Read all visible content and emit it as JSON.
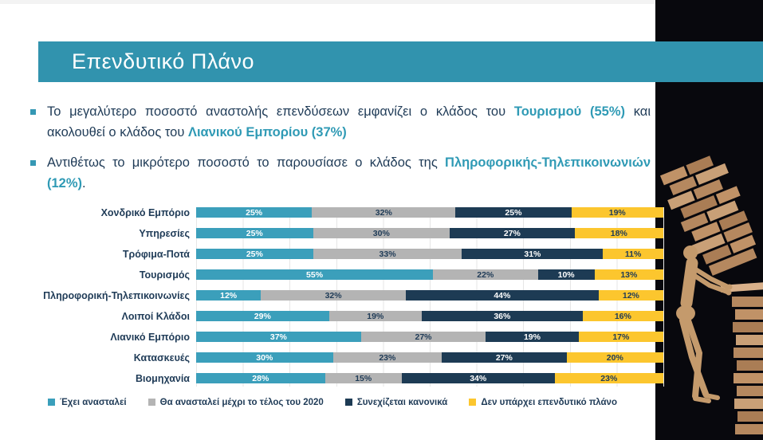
{
  "title": "Επενδυτικό Πλάνο",
  "bullets": [
    {
      "runs": [
        {
          "t": "Το μεγαλύτερο ποσοστό αναστολής επενδύσεων εμφανίζει ο κλάδος του ",
          "accent": false
        },
        {
          "t": "Τουρισμού (55%)",
          "accent": true
        },
        {
          "t": " και ακολουθεί ο κλάδος του ",
          "accent": false
        },
        {
          "t": "Λιανικού Εμπορίου (37%)",
          "accent": true
        }
      ]
    },
    {
      "runs": [
        {
          "t": "Αντιθέτως το μικρότερο ποσοστό το παρουσίασε ο κλάδος της ",
          "accent": false
        },
        {
          "t": "Πληροφορικής-Τηλεπικοινωνιών (12%)",
          "accent": true
        },
        {
          "t": ".",
          "accent": false
        }
      ]
    }
  ],
  "chart_data": {
    "type": "bar",
    "orientation": "horizontal",
    "stacked": true,
    "unit": "%",
    "xlim": [
      0,
      100
    ],
    "grid": true,
    "legend_position": "bottom",
    "categories": [
      "Χονδρικό Εμπόριο",
      "Υπηρεσίες",
      "Τρόφιμα-Ποτά",
      "Τουρισμός",
      "Πληροφορική-Τηλεπικοινωνίες",
      "Λοιποί Κλάδοι",
      "Λιανικό Εμπόριο",
      "Κατασκευές",
      "Βιομηχανία"
    ],
    "series": [
      {
        "name": "Έχει ανασταλεί",
        "color": "#3b9fbb",
        "label_color": "#ffffff",
        "values": [
          25,
          25,
          25,
          55,
          12,
          29,
          37,
          30,
          28
        ]
      },
      {
        "name": "Θα ανασταλεί μέχρι το τέλος του 2020",
        "color": "#b4b4b4",
        "label_color": "#1f3b57",
        "values": [
          32,
          30,
          33,
          22,
          32,
          19,
          27,
          23,
          15
        ]
      },
      {
        "name": "Συνεχίζεται κανονικά",
        "color": "#1d3b54",
        "label_color": "#ffffff",
        "values": [
          25,
          27,
          31,
          10,
          44,
          36,
          19,
          27,
          34
        ]
      },
      {
        "name": "Δεν υπάρχει επενδυτικό πλάνο",
        "color": "#fcc62e",
        "label_color": "#1f3b57",
        "values": [
          19,
          18,
          11,
          13,
          12,
          16,
          17,
          20,
          23
        ]
      }
    ]
  },
  "colors": {
    "banner": "#3193ae",
    "accent_text": "#2f9ab5",
    "body_text": "#1f3b57",
    "photo_background": "#08080d"
  }
}
